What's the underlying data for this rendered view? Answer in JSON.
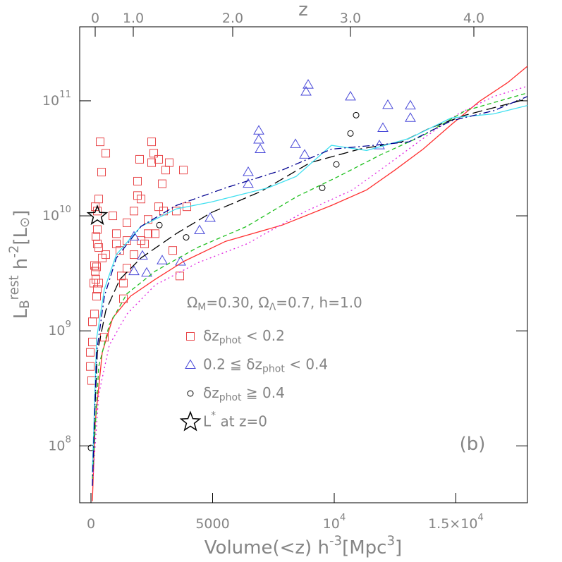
{
  "chart_data": {
    "type": "scatter",
    "xlabel": "Volume(<z) h^{-3}[Mpc^{3}]",
    "ylabel": "L_{B}^{rest} h^{-2}[L_{⊙}]",
    "x2label": "z",
    "ylog": true,
    "xlim": [
      -464,
      17942
    ],
    "ylim": [
      32000000.0,
      440000000000.0
    ],
    "xticks": [
      0,
      5000,
      {
        "value": 10000,
        "label": "10^{4}"
      },
      {
        "value": 15000,
        "label": "1.5×10^{4}"
      }
    ],
    "x2ticks": [
      {
        "value": 174,
        "label": "0"
      },
      {
        "value": 1739,
        "label": "1.0"
      },
      {
        "value": 5826,
        "label": "2.0"
      },
      {
        "value": 10667,
        "label": "3.0"
      },
      {
        "value": 15739,
        "label": "4.0"
      }
    ],
    "yticks": [
      {
        "value": 100000000.0,
        "label": "10^{8}"
      },
      {
        "value": 1000000000.0,
        "label": "10^{9}"
      },
      {
        "value": 10000000000.0,
        "label": "10^{10}"
      },
      {
        "value": 100000000000.0,
        "label": "10^{11}"
      }
    ],
    "annotations": [
      "Ω_{M}=0.30,  Ω_{Λ}=0.7,  h=1.0",
      "(b)"
    ],
    "series": [
      {
        "name": "δz_{phot} < 0.2",
        "marker": "square",
        "color": "#e8474a",
        "x": [
          377,
          435,
          319,
          261,
          203,
          261,
          145,
          232,
          174,
          203,
          116,
          319,
          261,
          319,
          464,
          232,
          145,
          58,
          58,
          -29,
          -29,
          29,
          609,
          899,
          1043,
          1188,
          1246,
          1333,
          1478,
          1768,
          1913,
          1913,
          2000,
          2058,
          2203,
          2348,
          2493,
          2580,
          2638,
          2783,
          2928,
          2986,
          3072,
          3217,
          3362,
          3507,
          3652,
          3797,
          3942,
          2348,
          1478,
          1478,
          1768,
          2058,
          1333,
          1043,
          2493,
          2783,
          261,
          551,
          174,
          609
        ],
        "values": [
          44000000000.0,
          24000000000.0,
          14000000000.0,
          11000000000.0,
          6600000000.0,
          5700000000.0,
          3700000000.0,
          3600000000.0,
          3300000000.0,
          2800000000.0,
          2600000000.0,
          2600000000.0,
          2300000000.0,
          5300000000.0,
          4300000000.0,
          2000000000.0,
          1400000000.0,
          1200000000.0,
          800000000.0,
          650000000.0,
          490000000.0,
          370000000.0,
          35000000000.0,
          10000000000.0,
          7000000000.0,
          5000000000.0,
          3000000000.0,
          2600000000.0,
          3500000000.0,
          11000000000.0,
          15000000000.0,
          20000000000.0,
          31000000000.0,
          14000000000.0,
          5700000000.0,
          9300000000.0,
          44000000000.0,
          35000000000.0,
          7000000000.0,
          12000000000.0,
          19000000000.0,
          11000000000.0,
          25000000000.0,
          29000000000.0,
          5000000000.0,
          11000000000.0,
          3000000000.0,
          25000000000.0,
          12000000000.0,
          7000000000.0,
          6100000000.0,
          8700000000.0,
          4600000000.0,
          6100000000.0,
          1900000000.0,
          5700000000.0,
          29000000000.0,
          31000000000.0,
          7600000000.0,
          880000000.0,
          12000000000.0,
          4600000000.0
        ]
      },
      {
        "name": "0.2 ≦ δz_{phot} < 0.4",
        "marker": "triangle",
        "color": "#4848d8",
        "x": [
          8928,
          8841,
          10667,
          12203,
          13130,
          13130,
          12000,
          6899,
          6899,
          6957,
          8406,
          8783,
          11855,
          6464,
          6464,
          4899,
          4464,
          1768,
          2116,
          2928,
          3681,
          1768,
          2290
        ],
        "values": [
          138000000000.0,
          120000000000.0,
          109000000000.0,
          92000000000.0,
          91000000000.0,
          71000000000.0,
          58000000000.0,
          55000000000.0,
          46000000000.0,
          38000000000.0,
          42000000000.0,
          34000000000.0,
          41000000000.0,
          24000000000.0,
          19000000000.0,
          9600000000.0,
          7500000000.0,
          6600000000.0,
          4500000000.0,
          4100000000.0,
          4000000000.0,
          3300000000.0,
          3200000000.0
        ]
      },
      {
        "name": "δz_{phot} ≧ 0.4",
        "marker": "circle",
        "color": "#000000",
        "x": [
          10667,
          10899,
          10087,
          9507,
          3913,
          2812,
          0
        ],
        "values": [
          52000000000.0,
          75000000000.0,
          28000000000.0,
          17500000000.0,
          6500000000.0,
          8300000000.0,
          96000000.0
        ]
      },
      {
        "name": "L^{*} at z=0",
        "marker": "star",
        "color": "#000000",
        "x": [
          261
        ],
        "values": [
          10000000000.0
        ]
      },
      {
        "marker": "line",
        "color": "#ff3030",
        "dash": "none",
        "x": [
          58,
          174,
          464,
          899,
          1623,
          2638,
          3797,
          5536,
          7855,
          9884,
          11333,
          12493,
          13652,
          14812,
          15971,
          17130,
          17942
        ],
        "values": [
          33000000.0,
          160000000.0,
          650000000.0,
          1300000000.0,
          2000000000.0,
          2800000000.0,
          4000000000.0,
          6000000000.0,
          8300000000.0,
          12300000000.0,
          16800000000.0,
          25000000000.0,
          38000000000.0,
          62000000000.0,
          99000000000.0,
          144000000000.0,
          200000000000.0
        ]
      },
      {
        "marker": "line",
        "color": "#e020e0",
        "dash": "2 4",
        "x": [
          58,
          319,
          754,
          1478,
          2638,
          4377,
          6406,
          8725,
          10754,
          12493,
          13652,
          15101,
          16551,
          17942
        ],
        "values": [
          45000000.0,
          280000000.0,
          750000000.0,
          1400000000.0,
          2500000000.0,
          3900000000.0,
          5700000000.0,
          10700000000.0,
          16800000000.0,
          31000000000.0,
          47000000000.0,
          77000000000.0,
          109000000000.0,
          134000000000.0
        ]
      },
      {
        "marker": "line",
        "color": "#20c020",
        "dash": "6 4",
        "x": [
          58,
          319,
          754,
          1478,
          2638,
          4377,
          6406,
          8435,
          10174,
          11913,
          13652,
          15391,
          17942
        ],
        "values": [
          52000000.0,
          490000000.0,
          1130000000.0,
          2100000000.0,
          3300000000.0,
          5300000000.0,
          8100000000.0,
          14600000000.0,
          22000000000.0,
          34000000000.0,
          50000000000.0,
          82000000000.0,
          117000000000.0
        ]
      },
      {
        "marker": "line",
        "color": "#000000",
        "dash": "14 6",
        "x": [
          58,
          261,
          609,
          1188,
          2058,
          3507,
          4957,
          6986,
          9014,
          11043,
          12783,
          13942,
          15391,
          17942
        ],
        "values": [
          59000000.0,
          650000000.0,
          1500000000.0,
          2800000000.0,
          4300000000.0,
          7000000000.0,
          10700000000.0,
          16300000000.0,
          29000000000.0,
          38000000000.0,
          44000000000.0,
          58000000000.0,
          75000000000.0,
          104000000000.0
        ]
      },
      {
        "marker": "line",
        "color": "#40e0f0",
        "dash": "none",
        "x": [
          58,
          232,
          551,
          1043,
          2058,
          3507,
          4957,
          7275,
          8435,
          9884,
          11333,
          13072,
          14812,
          16551,
          17942
        ],
        "values": [
          59000000.0,
          860000000.0,
          2300000000.0,
          4600000000.0,
          8100000000.0,
          11500000000.0,
          13200000000.0,
          17500000000.0,
          22000000000.0,
          41000000000.0,
          37000000000.0,
          47000000000.0,
          71000000000.0,
          77000000000.0,
          91000000000.0
        ]
      },
      {
        "marker": "line",
        "color": "#000090",
        "dash": "10 4 2 4",
        "x": [
          58,
          232,
          551,
          1043,
          2058,
          3507,
          5536,
          7855,
          9884,
          11623,
          13072,
          14812,
          16551,
          17942
        ],
        "values": [
          45000000.0,
          650000000.0,
          2000000000.0,
          4300000000.0,
          8100000000.0,
          12300000000.0,
          17500000000.0,
          25000000000.0,
          38000000000.0,
          41000000000.0,
          44000000000.0,
          67000000000.0,
          82000000000.0,
          109000000000.0
        ]
      }
    ]
  }
}
